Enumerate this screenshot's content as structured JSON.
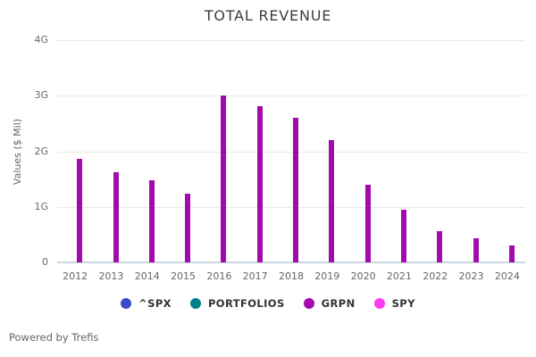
{
  "title": "TOTAL REVENUE",
  "y_axis_label": "Values ($ Mil)",
  "footer": {
    "powered_by": "Powered by Trefis"
  },
  "colors": {
    "bar_grpn": "#A30AAE",
    "legend_spx": "#3B4BC8",
    "legend_portfolios": "#01808C",
    "legend_grpn": "#A30AAE",
    "legend_spy": "#FB3BF0",
    "gridline": "#E9E9E9",
    "axis_baseline": "#CCD6DE",
    "muted_text": "#666666",
    "title_text": "#3D3D3D",
    "legend_text": "#333333"
  },
  "legend": {
    "items": [
      {
        "label": "^SPX",
        "color": "#3B4BC8"
      },
      {
        "label": "PORTFOLIOS",
        "color": "#01808C"
      },
      {
        "label": "GRPN",
        "color": "#A30AAE"
      },
      {
        "label": "SPY",
        "color": "#FB3BF0"
      }
    ]
  },
  "chart_data": {
    "type": "bar",
    "title": "TOTAL REVENUE",
    "xlabel": "",
    "ylabel": "Values ($ Mil)",
    "categories": [
      "2012",
      "2013",
      "2014",
      "2015",
      "2016",
      "2017",
      "2018",
      "2019",
      "2020",
      "2021",
      "2022",
      "2023",
      "2024"
    ],
    "series": [
      {
        "name": "^SPX",
        "color": "#3B4BC8",
        "values": []
      },
      {
        "name": "PORTFOLIOS",
        "color": "#01808C",
        "values": []
      },
      {
        "name": "GRPN",
        "color": "#A30AAE",
        "values": [
          1.86,
          1.63,
          1.47,
          1.23,
          3.0,
          2.81,
          2.6,
          2.2,
          1.4,
          0.95,
          0.57,
          0.44,
          0.31
        ]
      },
      {
        "name": "SPY",
        "color": "#FB3BF0",
        "values": []
      }
    ],
    "y_ticks": [
      "0",
      "1G",
      "2G",
      "3G",
      "4G"
    ],
    "ylim": [
      0,
      4
    ],
    "unit": "G ($ Mil)",
    "grid": true,
    "legend_position": "bottom"
  }
}
